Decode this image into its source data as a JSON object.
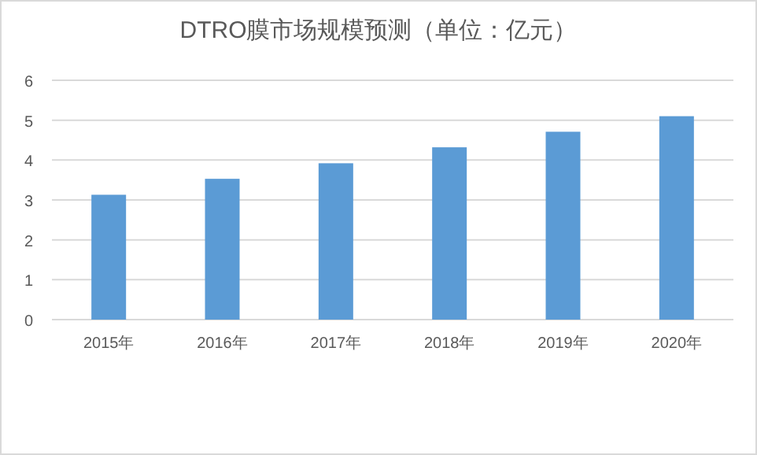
{
  "chart_data": {
    "type": "bar",
    "title": "DTRO膜市场规模预测（单位：亿元）",
    "categories": [
      "2015年",
      "2016年",
      "2017年",
      "2018年",
      "2019年",
      "2020年"
    ],
    "values": [
      3.13,
      3.53,
      3.92,
      4.32,
      4.71,
      5.1
    ],
    "color": "#5b9bd5",
    "ylim": [
      0,
      6
    ],
    "yticks": [
      0,
      1,
      2,
      3,
      4,
      5,
      6
    ],
    "grid": "y"
  }
}
